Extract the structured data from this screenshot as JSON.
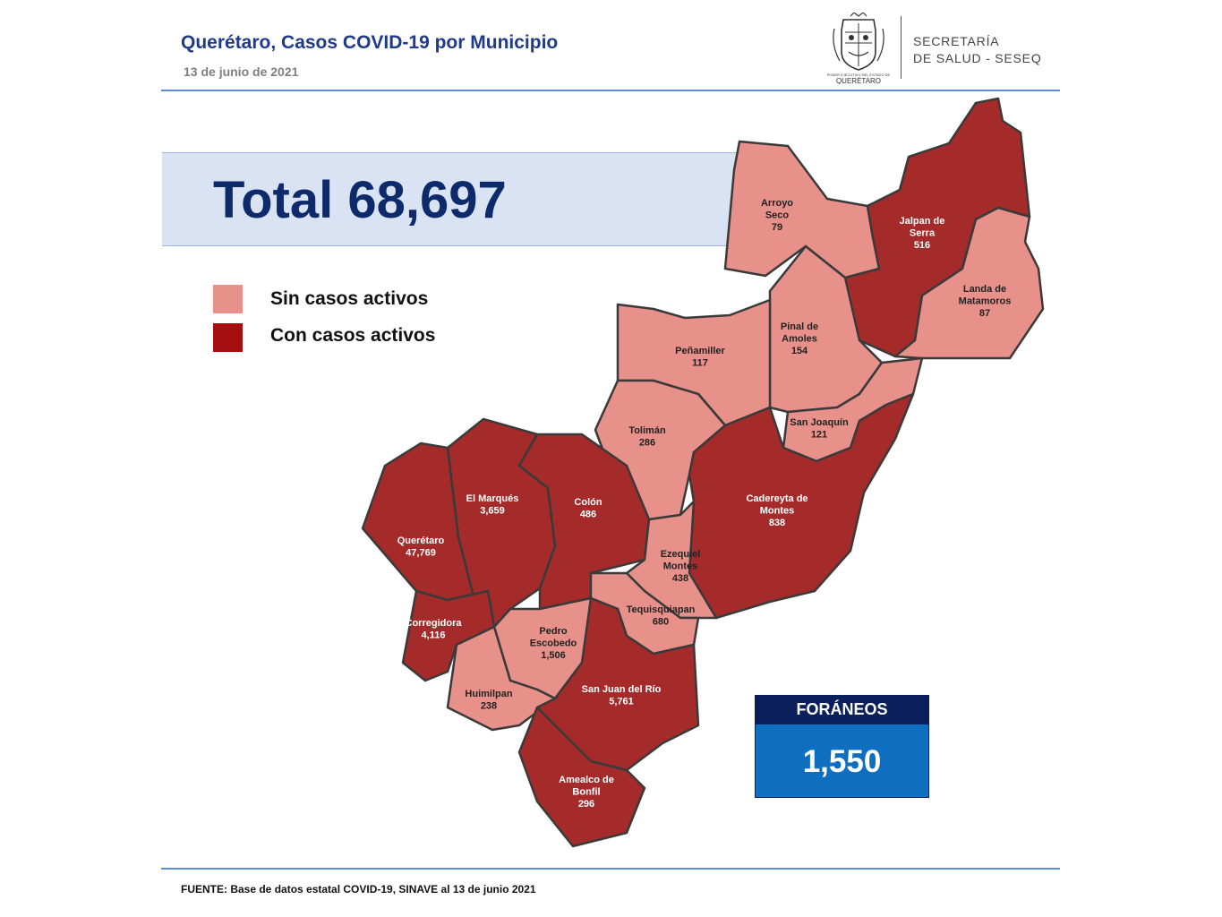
{
  "header": {
    "title": "Querétaro, Casos COVID-19 por Municipio",
    "date": "13 de junio de 2021",
    "org_line1": "SECRETARÍA",
    "org_line2": "DE SALUD - SESEQ",
    "logo_text_small": "PODER EJECUTIVO DEL ESTADO DE",
    "logo_text": "QUERÉTARO"
  },
  "total": {
    "label": "Total 68,697"
  },
  "legend": [
    {
      "label": "Sin casos activos",
      "color": "#e8918b"
    },
    {
      "label": "Con casos activos",
      "color": "#a50f0f"
    }
  ],
  "map": {
    "colors": {
      "inactive": "#e8918b",
      "active": "#a52a2a",
      "border": "#3a3a3a"
    },
    "municipalities": [
      {
        "name_lines": [
          "Arroyo",
          "Seco"
        ],
        "cases": "79",
        "active": false
      },
      {
        "name_lines": [
          "Jalpan de",
          "Serra"
        ],
        "cases": "516",
        "active": true
      },
      {
        "name_lines": [
          "Landa de",
          "Matamoros"
        ],
        "cases": "87",
        "active": false
      },
      {
        "name_lines": [
          "Pinal de",
          "Amoles"
        ],
        "cases": "154",
        "active": false
      },
      {
        "name_lines": [
          "Peñamiller"
        ],
        "cases": "117",
        "active": false
      },
      {
        "name_lines": [
          "San Joaquín"
        ],
        "cases": "121",
        "active": false
      },
      {
        "name_lines": [
          "Tolimán"
        ],
        "cases": "286",
        "active": false
      },
      {
        "name_lines": [
          "Cadereyta de",
          "Montes"
        ],
        "cases": "838",
        "active": true
      },
      {
        "name_lines": [
          "El  Marqués"
        ],
        "cases": "3,659",
        "active": true
      },
      {
        "name_lines": [
          "Colón"
        ],
        "cases": "486",
        "active": true
      },
      {
        "name_lines": [
          "Querétaro"
        ],
        "cases": "47,769",
        "active": true
      },
      {
        "name_lines": [
          "Ezequiel",
          "Montes"
        ],
        "cases": "438",
        "active": false
      },
      {
        "name_lines": [
          "Tequisquiapan"
        ],
        "cases": "680",
        "active": false
      },
      {
        "name_lines": [
          "Corregidora"
        ],
        "cases": "4,116",
        "active": true
      },
      {
        "name_lines": [
          "Pedro",
          "Escobedo"
        ],
        "cases": "1,506",
        "active": false
      },
      {
        "name_lines": [
          "Huimilpan"
        ],
        "cases": "238",
        "active": false
      },
      {
        "name_lines": [
          "San Juan del Río"
        ],
        "cases": "5,761",
        "active": true
      },
      {
        "name_lines": [
          "Amealco de",
          "Bonfil"
        ],
        "cases": "296",
        "active": true
      }
    ]
  },
  "foraneos": {
    "label": "FORÁNEOS",
    "value": "1,550"
  },
  "source": "FUENTE:  Base de datos estatal COVID-19,  SINAVE  al 13 de junio  2021"
}
